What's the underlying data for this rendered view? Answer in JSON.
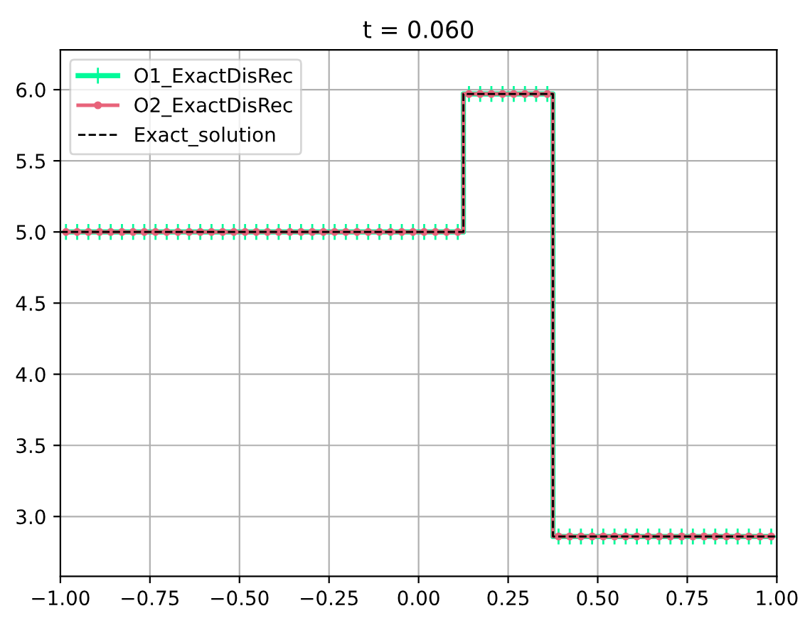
{
  "chart_data": {
    "type": "line",
    "title": "t = 0.060",
    "xlim": [
      -1,
      1
    ],
    "ylim": [
      2.58,
      6.28
    ],
    "xticks": [
      {
        "value": -1,
        "label": "−1.00"
      },
      {
        "value": -0.75,
        "label": "−0.75"
      },
      {
        "value": -0.5,
        "label": "−0.50"
      },
      {
        "value": -0.25,
        "label": "−0.25"
      },
      {
        "value": 0,
        "label": "0.00"
      },
      {
        "value": 0.25,
        "label": "0.25"
      },
      {
        "value": 0.5,
        "label": "0.50"
      },
      {
        "value": 0.75,
        "label": "0.75"
      },
      {
        "value": 1,
        "label": "1.00"
      }
    ],
    "yticks": [
      {
        "value": 3,
        "label": "3.0"
      },
      {
        "value": 3.5,
        "label": "3.5"
      },
      {
        "value": 4,
        "label": "4.0"
      },
      {
        "value": 4.5,
        "label": "4.5"
      },
      {
        "value": 5,
        "label": "5.0"
      },
      {
        "value": 5.5,
        "label": "5.5"
      },
      {
        "value": 6,
        "label": "6.0"
      }
    ],
    "grid": true,
    "legend": "top left",
    "x": [
      -0.984375,
      -0.953125,
      -0.921875,
      -0.890625,
      -0.859375,
      -0.828125,
      -0.796875,
      -0.765625,
      -0.734375,
      -0.703125,
      -0.671875,
      -0.640625,
      -0.609375,
      -0.578125,
      -0.546875,
      -0.515625,
      -0.484375,
      -0.453125,
      -0.421875,
      -0.390625,
      -0.359375,
      -0.328125,
      -0.296875,
      -0.265625,
      -0.234375,
      -0.203125,
      -0.171875,
      -0.140625,
      -0.109375,
      -0.078125,
      -0.046875,
      -0.015625,
      0.015625,
      0.046875,
      0.078125,
      0.109375,
      0.140625,
      0.171875,
      0.203125,
      0.234375,
      0.265625,
      0.296875,
      0.328125,
      0.359375,
      0.390625,
      0.421875,
      0.453125,
      0.484375,
      0.515625,
      0.546875,
      0.578125,
      0.609375,
      0.640625,
      0.671875,
      0.703125,
      0.734375,
      0.765625,
      0.796875,
      0.828125,
      0.859375,
      0.890625,
      0.921875,
      0.953125,
      0.984375
    ],
    "series": [
      {
        "name": "O1_ExactDisRec",
        "type": "step",
        "color": "#00fa9a",
        "marker": "cross",
        "line_style": "solid",
        "values": [
          5.0,
          5.0,
          5.0,
          5.0,
          5.0,
          5.0,
          5.0,
          5.0,
          5.0,
          5.0,
          5.0,
          5.0,
          5.0,
          5.0,
          5.0,
          5.0,
          5.0,
          5.0,
          5.0,
          5.0,
          5.0,
          5.0,
          5.0,
          5.0,
          5.0,
          5.0,
          5.0,
          5.0,
          5.0,
          5.0,
          5.0,
          5.0,
          5.0,
          5.0,
          5.0,
          5.0,
          5.97,
          5.97,
          5.97,
          5.97,
          5.97,
          5.97,
          5.97,
          5.97,
          2.86,
          2.86,
          2.86,
          2.86,
          2.86,
          2.86,
          2.86,
          2.86,
          2.86,
          2.86,
          2.86,
          2.86,
          2.86,
          2.86,
          2.86,
          2.86,
          2.86,
          2.86,
          2.86,
          2.86
        ]
      },
      {
        "name": "O2_ExactDisRec",
        "type": "step",
        "color": "#e8637a",
        "marker": "circle",
        "line_style": "solid",
        "values": [
          5.0,
          5.0,
          5.0,
          5.0,
          5.0,
          5.0,
          5.0,
          5.0,
          5.0,
          5.0,
          5.0,
          5.0,
          5.0,
          5.0,
          5.0,
          5.0,
          5.0,
          5.0,
          5.0,
          5.0,
          5.0,
          5.0,
          5.0,
          5.0,
          5.0,
          5.0,
          5.0,
          5.0,
          5.0,
          5.0,
          5.0,
          5.0,
          5.0,
          5.0,
          5.0,
          5.0,
          5.97,
          5.97,
          5.97,
          5.97,
          5.97,
          5.97,
          5.97,
          5.97,
          2.86,
          2.86,
          2.86,
          2.86,
          2.86,
          2.86,
          2.86,
          2.86,
          2.86,
          2.86,
          2.86,
          2.86,
          2.86,
          2.86,
          2.86,
          2.86,
          2.86,
          2.86,
          2.86,
          2.86
        ]
      },
      {
        "name": "Exact_solution",
        "color": "#000000",
        "marker": "none",
        "line_style": "dashed",
        "x": [
          -1,
          0.125,
          0.125,
          0.375,
          0.375,
          1
        ],
        "values": [
          5.0,
          5.0,
          5.97,
          5.97,
          2.86,
          2.86
        ]
      }
    ]
  }
}
